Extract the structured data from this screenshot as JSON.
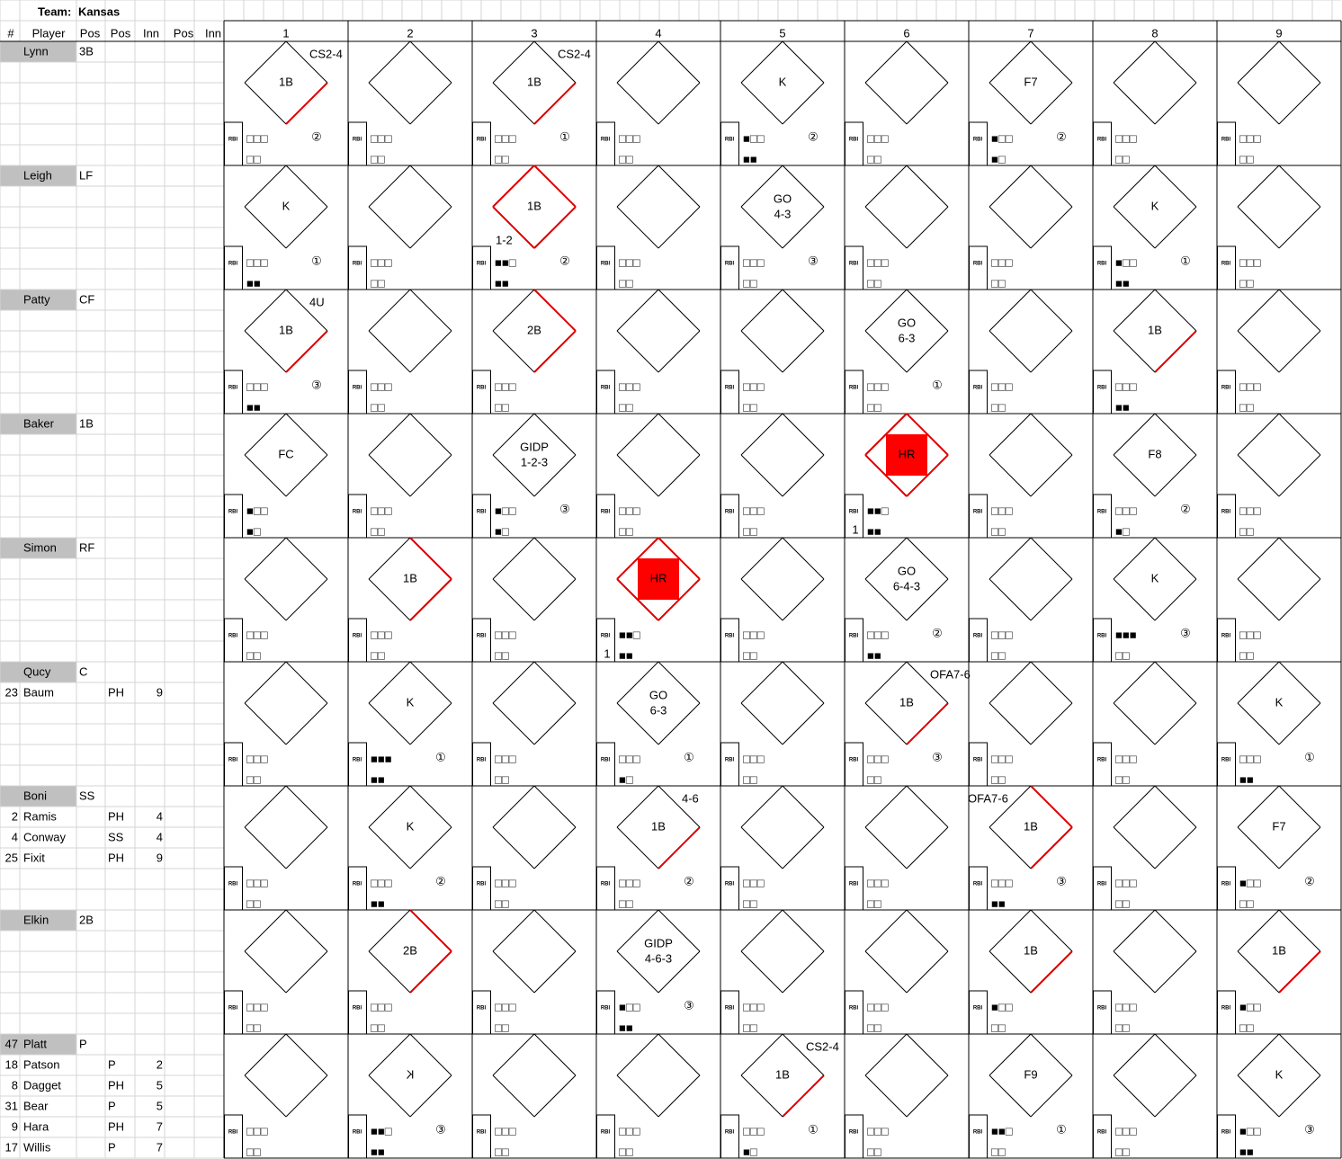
{
  "header": {
    "team_label": "Team:",
    "team": "Kansas"
  },
  "columns": [
    "#",
    "Player",
    "Pos",
    "Pos",
    "Inn",
    "Pos",
    "Inn"
  ],
  "innings": [
    1,
    2,
    3,
    4,
    5,
    6,
    7,
    8,
    9
  ],
  "labels": {
    "rbi": "RBI"
  },
  "batters": [
    {
      "name": "Lynn",
      "pos": "3B",
      "subs": [],
      "at_bats": [
        {
          "result": "1B",
          "note": "CS2-4",
          "bases": 1,
          "out": "②",
          "balls": "□□□",
          "strikes": "□□"
        },
        {
          "balls": "□□□",
          "strikes": "□□"
        },
        {
          "result": "1B",
          "note": "CS2-4",
          "bases": 1,
          "out": "①",
          "balls": "□□□",
          "strikes": "□□"
        },
        {
          "balls": "□□□",
          "strikes": "□□"
        },
        {
          "result": "K",
          "out": "②",
          "balls": "■□□",
          "strikes": "■■"
        },
        {
          "balls": "□□□",
          "strikes": "□□"
        },
        {
          "result": "F7",
          "out": "②",
          "balls": "■□□",
          "strikes": "■□"
        },
        {
          "balls": "□□□",
          "strikes": "□□"
        },
        {
          "balls": "□□□",
          "strikes": "□□"
        }
      ]
    },
    {
      "name": "Leigh",
      "pos": "LF",
      "subs": [],
      "at_bats": [
        {
          "result": "K",
          "out": "①",
          "balls": "□□□",
          "strikes": "■■"
        },
        {
          "balls": "□□□",
          "strikes": "□□"
        },
        {
          "result": "1B",
          "low_note": "1-2",
          "bases": 4,
          "out": "②",
          "balls": "■■□",
          "strikes": "■■"
        },
        {
          "balls": "□□□",
          "strikes": "□□"
        },
        {
          "result": "GO",
          "play": "4-3",
          "out": "③",
          "balls": "□□□",
          "strikes": "□□"
        },
        {
          "balls": "□□□",
          "strikes": "□□"
        },
        {
          "balls": "□□□",
          "strikes": "□□"
        },
        {
          "result": "K",
          "out": "①",
          "balls": "■□□",
          "strikes": "■■"
        },
        {
          "balls": "□□□",
          "strikes": "□□"
        }
      ]
    },
    {
      "name": "Patty",
      "pos": "CF",
      "subs": [],
      "at_bats": [
        {
          "result": "1B",
          "note": "4U",
          "bases": 1,
          "out": "③",
          "balls": "□□□",
          "strikes": "■■"
        },
        {
          "balls": "□□□",
          "strikes": "□□"
        },
        {
          "result": "2B",
          "bases": 2,
          "balls": "□□□",
          "strikes": "□□"
        },
        {
          "balls": "□□□",
          "strikes": "□□"
        },
        {
          "balls": "□□□",
          "strikes": "□□"
        },
        {
          "result": "GO",
          "play": "6-3",
          "out": "①",
          "balls": "□□□",
          "strikes": "□□"
        },
        {
          "balls": "□□□",
          "strikes": "□□"
        },
        {
          "result": "1B",
          "bases": 1,
          "balls": "□□□",
          "strikes": "■■"
        },
        {
          "balls": "□□□",
          "strikes": "□□"
        }
      ]
    },
    {
      "name": "Baker",
      "pos": "1B",
      "subs": [],
      "at_bats": [
        {
          "result": "FC",
          "balls": "■□□",
          "strikes": "■□"
        },
        {
          "balls": "□□□",
          "strikes": "□□"
        },
        {
          "result": "GIDP",
          "play": "1-2-3",
          "out": "③",
          "balls": "■□□",
          "strikes": "■□"
        },
        {
          "balls": "□□□",
          "strikes": "□□"
        },
        {
          "balls": "□□□",
          "strikes": "□□"
        },
        {
          "result": "HR",
          "bases": 4,
          "rbi": 1,
          "balls": "■■□",
          "strikes": "■■"
        },
        {
          "balls": "□□□",
          "strikes": "□□"
        },
        {
          "result": "F8",
          "out": "②",
          "balls": "□□□",
          "strikes": "■□"
        },
        {
          "balls": "□□□",
          "strikes": "□□"
        }
      ]
    },
    {
      "name": "Simon",
      "pos": "RF",
      "subs": [],
      "at_bats": [
        {
          "balls": "□□□",
          "strikes": "□□"
        },
        {
          "result": "1B",
          "bases": 2,
          "balls": "□□□",
          "strikes": "□□"
        },
        {
          "balls": "□□□",
          "strikes": "□□"
        },
        {
          "result": "HR",
          "bases": 4,
          "rbi": 1,
          "balls": "■■□",
          "strikes": "■■"
        },
        {
          "balls": "□□□",
          "strikes": "□□"
        },
        {
          "result": "GO",
          "play": "6-4-3",
          "out": "②",
          "balls": "□□□",
          "strikes": "■■"
        },
        {
          "balls": "□□□",
          "strikes": "□□"
        },
        {
          "result": "K",
          "out": "③",
          "balls": "■■■",
          "strikes": "□□"
        },
        {
          "balls": "□□□",
          "strikes": "□□"
        }
      ]
    },
    {
      "name": "Qucy",
      "pos": "C",
      "subs": [
        {
          "num": 23,
          "name": "Baum",
          "pos": "PH",
          "inn": 9
        }
      ],
      "at_bats": [
        {
          "balls": "□□□",
          "strikes": "□□"
        },
        {
          "result": "K",
          "out": "①",
          "balls": "■■■",
          "strikes": "■■"
        },
        {
          "balls": "□□□",
          "strikes": "□□"
        },
        {
          "result": "GO",
          "play": "6-3",
          "out": "①",
          "balls": "□□□",
          "strikes": "■□"
        },
        {
          "balls": "□□□",
          "strikes": "□□"
        },
        {
          "result": "1B",
          "note": "OFA7-6",
          "bases": 1,
          "out": "③",
          "balls": "□□□",
          "strikes": "□□"
        },
        {
          "balls": "□□□",
          "strikes": "□□"
        },
        {
          "balls": "□□□",
          "strikes": "□□"
        },
        {
          "result": "K",
          "out": "①",
          "balls": "□□□",
          "strikes": "■■"
        }
      ]
    },
    {
      "name": "Boni",
      "pos": "SS",
      "subs": [
        {
          "num": 2,
          "name": "Ramis",
          "pos": "PH",
          "inn": 4
        },
        {
          "num": 4,
          "name": "Conway",
          "pos": "SS",
          "inn": 4
        },
        {
          "num": 25,
          "name": "Fixit",
          "pos": "PH",
          "inn": 9
        }
      ],
      "at_bats": [
        {
          "balls": "□□□",
          "strikes": "□□"
        },
        {
          "result": "K",
          "out": "②",
          "balls": "□□□",
          "strikes": "■■"
        },
        {
          "balls": "□□□",
          "strikes": "□□"
        },
        {
          "result": "1B",
          "note": "4-6",
          "bases": 1,
          "out": "②",
          "balls": "□□□",
          "strikes": "□□"
        },
        {
          "balls": "□□□",
          "strikes": "□□"
        },
        {
          "balls": "□□□",
          "strikes": "□□"
        },
        {
          "result": "1B",
          "note": "OFA7-6",
          "note_align": "left",
          "bases": 2,
          "out": "③",
          "balls": "□□□",
          "strikes": "■■"
        },
        {
          "balls": "□□□",
          "strikes": "□□"
        },
        {
          "result": "F7",
          "out": "②",
          "balls": "■□□",
          "strikes": "□□"
        }
      ]
    },
    {
      "name": "Elkin",
      "pos": "2B",
      "subs": [],
      "at_bats": [
        {
          "balls": "□□□",
          "strikes": "□□"
        },
        {
          "result": "2B",
          "bases": 2,
          "balls": "□□□",
          "strikes": "□□"
        },
        {
          "balls": "□□□",
          "strikes": "□□"
        },
        {
          "result": "GIDP",
          "play": "4-6-3",
          "out": "③",
          "balls": "■□□",
          "strikes": "■■"
        },
        {
          "balls": "□□□",
          "strikes": "□□"
        },
        {
          "balls": "□□□",
          "strikes": "□□"
        },
        {
          "result": "1B",
          "bases": 1,
          "balls": "■□□",
          "strikes": "□□"
        },
        {
          "balls": "□□□",
          "strikes": "□□"
        },
        {
          "result": "1B",
          "bases": 1,
          "balls": "■□□",
          "strikes": "□□"
        }
      ]
    },
    {
      "num": 47,
      "name": "Platt",
      "pos": "P",
      "subs": [
        {
          "num": 18,
          "name": "Patson",
          "pos": "P",
          "inn": 2
        },
        {
          "num": 8,
          "name": "Dagget",
          "pos": "PH",
          "inn": 5
        },
        {
          "num": 31,
          "name": "Bear",
          "pos": "P",
          "inn": 5
        },
        {
          "num": 9,
          "name": "Hara",
          "pos": "PH",
          "inn": 7
        },
        {
          "num": 17,
          "name": "Willis",
          "pos": "P",
          "inn": 7
        }
      ],
      "at_bats": [
        {
          "balls": "□□□",
          "strikes": "□□"
        },
        {
          "result": "K",
          "mirrored": true,
          "out": "③",
          "balls": "■■□",
          "strikes": "■■"
        },
        {
          "balls": "□□□",
          "strikes": "□□"
        },
        {
          "balls": "□□□",
          "strikes": "□□"
        },
        {
          "result": "1B",
          "note": "CS2-4",
          "bases": 1,
          "out": "①",
          "balls": "□□□",
          "strikes": "■□"
        },
        {
          "balls": "□□□",
          "strikes": "□□"
        },
        {
          "result": "F9",
          "out": "①",
          "balls": "■■□",
          "strikes": "□□"
        },
        {
          "balls": "□□□",
          "strikes": "□□"
        },
        {
          "result": "K",
          "out": "③",
          "balls": "■□□",
          "strikes": "■■"
        }
      ]
    }
  ]
}
